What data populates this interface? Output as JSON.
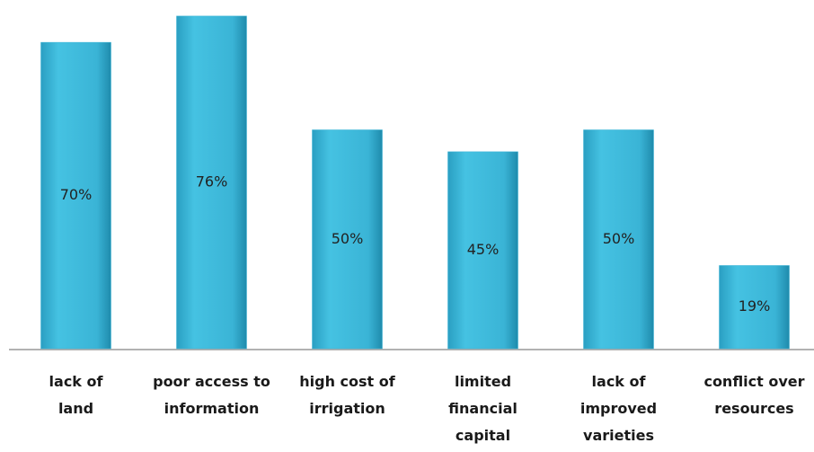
{
  "chart_data": {
    "type": "bar",
    "categories": [
      "lack of land",
      "poor access to information",
      "high cost of irrigation",
      "limited financial capital",
      "lack of improved varieties",
      "conflict over resources"
    ],
    "values": [
      70,
      76,
      50,
      45,
      50,
      19
    ],
    "value_labels": [
      "70%",
      "76%",
      "50%",
      "45%",
      "50%",
      "19%"
    ],
    "color": "#3ab4d6",
    "ylim": [
      0,
      80
    ]
  }
}
